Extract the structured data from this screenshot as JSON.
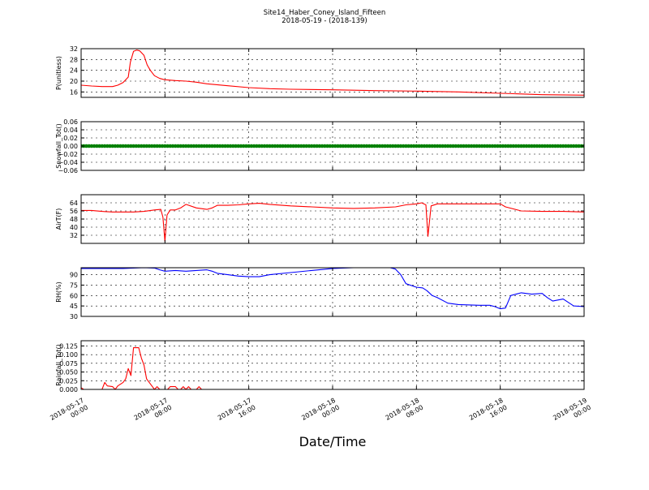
{
  "figure": {
    "title_line1": "Site14_Haber_Coney_Island_Fifteen",
    "title_line2": "2018-05-19 - (2018-139)",
    "xlabel": "Date/Time",
    "x_tick_labels": [
      [
        "2018-05-17",
        "00:00"
      ],
      [
        "2018-05-17",
        "08:00"
      ],
      [
        "2018-05-17",
        "16:00"
      ],
      [
        "2018-05-18",
        "00:00"
      ],
      [
        "2018-05-18",
        "08:00"
      ],
      [
        "2018-05-18",
        "16:00"
      ],
      [
        "2018-05-19",
        "00:00"
      ]
    ]
  },
  "chart_data": [
    {
      "type": "line",
      "ylabel": "P(unitless)",
      "ylim": [
        14,
        32
      ],
      "yticks": [
        16,
        20,
        24,
        28,
        32
      ],
      "ytick_labels": [
        "16",
        "20",
        "24",
        "28",
        "32"
      ],
      "color": "#ff0000",
      "grid": true,
      "x_hours": [
        0,
        1,
        2,
        3,
        3.5,
        4,
        4.5,
        4.7,
        5,
        5.3,
        5.6,
        6,
        6.3,
        6.6,
        7,
        7.5,
        8,
        9,
        10,
        11,
        12,
        14,
        16,
        18,
        20,
        24,
        28,
        32,
        36,
        40,
        44,
        48
      ],
      "y": [
        18.5,
        18.2,
        18.0,
        18.0,
        18.5,
        19.5,
        21.5,
        27,
        31,
        31.5,
        31.2,
        29.5,
        26,
        24,
        22,
        21,
        20.5,
        20.2,
        20.0,
        19.6,
        19.0,
        18.3,
        17.6,
        17.2,
        17.0,
        16.8,
        16.5,
        16.3,
        16.0,
        15.5,
        15.0,
        14.8
      ]
    },
    {
      "type": "scatter",
      "ylabel": "Snowfall_Tot()",
      "ylim": [
        -0.06,
        0.06
      ],
      "yticks": [
        -0.06,
        -0.04,
        -0.02,
        0.0,
        0.02,
        0.04,
        0.06
      ],
      "ytick_labels": [
        "−0.06",
        "−0.04",
        "−0.02",
        "0.00",
        "0.02",
        "0.04",
        "0.06"
      ],
      "color": "#008000",
      "grid": true,
      "x_hours_range": [
        0,
        48
      ],
      "x_step_hours": 0.25,
      "constant_y": 0.0
    },
    {
      "type": "line",
      "ylabel": "AirT(F)",
      "ylim": [
        24,
        72
      ],
      "yticks": [
        32,
        40,
        48,
        56,
        64
      ],
      "ytick_labels": [
        "32",
        "40",
        "48",
        "56",
        "64"
      ],
      "color": "#ff0000",
      "grid": true,
      "x_hours": [
        0,
        1,
        2,
        3,
        4,
        5,
        6,
        7,
        7.6,
        7.8,
        8.0,
        8.2,
        8.5,
        9,
        9.5,
        10,
        11,
        12,
        12.5,
        13,
        14,
        15,
        16,
        17,
        18,
        20,
        22,
        24,
        26,
        28,
        30,
        31,
        32,
        32.5,
        32.9,
        33.1,
        33.4,
        34,
        36,
        38,
        40,
        40.5,
        42,
        44,
        46,
        48
      ],
      "y": [
        56.5,
        56.5,
        55.5,
        55.0,
        55.0,
        55.0,
        55.5,
        57,
        57.5,
        50,
        26,
        52,
        57,
        57,
        59,
        62.5,
        59,
        57.5,
        59,
        61.5,
        61.5,
        62,
        63,
        63.5,
        62.5,
        61,
        60,
        59,
        58.5,
        59,
        60,
        62,
        63,
        64,
        62,
        31,
        61,
        63,
        63,
        63,
        63,
        60,
        56,
        55.5,
        55.5,
        55
      ]
    },
    {
      "type": "line",
      "ylabel": "RH(%)",
      "ylim": [
        30,
        100
      ],
      "yticks": [
        30,
        45,
        60,
        75,
        90
      ],
      "ytick_labels": [
        "30",
        "45",
        "60",
        "75",
        "90"
      ],
      "color": "#0000ff",
      "grid": true,
      "x_hours": [
        0,
        2,
        4,
        6,
        7,
        7.5,
        8,
        9,
        10,
        11,
        12,
        12.5,
        13,
        14,
        15,
        16,
        17,
        18,
        20,
        22,
        24,
        26,
        28,
        29.5,
        30,
        30.5,
        31,
        32,
        32.6,
        33,
        33.5,
        34,
        35,
        36,
        38,
        39,
        39.5,
        40,
        40.5,
        41,
        42,
        43,
        44,
        44.5,
        45,
        46,
        47,
        48
      ],
      "y": [
        99,
        99,
        99,
        100,
        99.5,
        97,
        95,
        96,
        95,
        96,
        97,
        95,
        92,
        90,
        88,
        87,
        87,
        90,
        93,
        96,
        99,
        100,
        100,
        100,
        98,
        90,
        77,
        72,
        71,
        67,
        60,
        57,
        49,
        47,
        46,
        46,
        44,
        41,
        42,
        60,
        64,
        62,
        63,
        57,
        52,
        55,
        45,
        44
      ]
    },
    {
      "type": "line",
      "ylabel": "Rainfall_Tot()",
      "ylim": [
        0,
        0.14
      ],
      "yticks": [
        0.0,
        0.025,
        0.05,
        0.075,
        0.1,
        0.125
      ],
      "ytick_labels": [
        "0.000",
        "0.025",
        "0.050",
        "0.075",
        "0.100",
        "0.125"
      ],
      "color": "#ff0000",
      "grid": true,
      "x_hours": [
        0,
        0.25,
        0.5,
        1,
        2,
        2.25,
        2.5,
        3,
        3.25,
        3.5,
        4,
        4.25,
        4.5,
        4.75,
        5,
        5.25,
        5.5,
        5.75,
        6,
        6.25,
        6.5,
        7,
        7.25,
        7.5,
        7.75,
        8,
        8.25,
        8.5,
        8.75,
        9,
        9.25,
        9.5,
        9.75,
        10,
        10.25,
        10.5,
        10.75,
        11,
        11.25,
        11.5,
        11.75,
        12,
        48
      ],
      "y": [
        0.005,
        0.0,
        0.0,
        0.0,
        0.0,
        0.02,
        0.01,
        0.008,
        0.0,
        0.01,
        0.02,
        0.03,
        0.06,
        0.04,
        0.12,
        0.12,
        0.12,
        0.09,
        0.07,
        0.03,
        0.02,
        0.0,
        0.008,
        0.0,
        0.0,
        0.0,
        0.0,
        0.008,
        0.008,
        0.008,
        0.0,
        0.0,
        0.008,
        0.0,
        0.008,
        0.0,
        0.0,
        0.0,
        0.008,
        0.0,
        0.0,
        0.0,
        0.0
      ]
    }
  ]
}
